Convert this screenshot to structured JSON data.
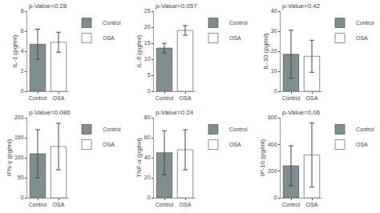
{
  "chart_data": [
    {
      "type": "bar",
      "ylabel": "IL-1 (pg/ml)",
      "annotations": [
        "p-Value=0.28"
      ],
      "categories": [
        "Control",
        "OSA"
      ],
      "series": [
        {
          "name": "Control",
          "color": "#7f8e8f",
          "values": [
            4.7,
            null
          ],
          "errors": [
            1.5,
            null
          ]
        },
        {
          "name": "OSA",
          "color": "#ffffff",
          "values": [
            null,
            4.9
          ],
          "errors": [
            null,
            1.0
          ]
        }
      ],
      "ylim": [
        0,
        8
      ],
      "yticks": [
        0,
        2,
        4,
        6,
        8
      ],
      "grid": false,
      "legend": "upper right"
    },
    {
      "type": "bar",
      "ylabel": "IL-6 (pg/ml)",
      "annotations": [
        "p-Value=0.057"
      ],
      "categories": [
        "Control",
        "OSA"
      ],
      "series": [
        {
          "name": "Control",
          "color": "#7f8e8f",
          "values": [
            13.5,
            null
          ],
          "errors": [
            1.5,
            null
          ]
        },
        {
          "name": "OSA",
          "color": "#ffffff",
          "values": [
            null,
            19.0
          ],
          "errors": [
            null,
            1.5
          ]
        }
      ],
      "ylim": [
        0,
        25
      ],
      "yticks": [
        0,
        5,
        10,
        15,
        20,
        25
      ],
      "grid": false,
      "legend": "upper right"
    },
    {
      "type": "bar",
      "ylabel": "IL-10 (pg/ml)",
      "annotations": [
        "p-Value=0.42"
      ],
      "categories": [
        "Control",
        "OSA"
      ],
      "series": [
        {
          "name": "Control",
          "color": "#7f8e8f",
          "values": [
            18.5,
            null
          ],
          "errors": [
            12.0,
            null
          ]
        },
        {
          "name": "OSA",
          "color": "#ffffff",
          "values": [
            null,
            17.5
          ],
          "errors": [
            null,
            8.0
          ]
        }
      ],
      "ylim": [
        0,
        40
      ],
      "yticks": [
        0,
        10,
        20,
        30,
        40
      ],
      "grid": false,
      "legend": "upper right"
    },
    {
      "type": "bar",
      "ylabel": "IFN-γ (pg/ml)",
      "annotations": [
        "p-Value=0.086"
      ],
      "categories": [
        "Control",
        "OSA"
      ],
      "series": [
        {
          "name": "Control",
          "color": "#7f8e8f",
          "values": [
            110.0,
            null
          ],
          "errors": [
            60.0,
            null
          ]
        },
        {
          "name": "OSA",
          "color": "#ffffff",
          "values": [
            null,
            128.0
          ],
          "errors": [
            null,
            58.0
          ]
        }
      ],
      "ylim": [
        0,
        200
      ],
      "yticks": [
        0,
        50,
        100,
        150,
        200
      ],
      "grid": false,
      "legend": "upper right"
    },
    {
      "type": "bar",
      "ylabel": "TNF-α (pg/ml)",
      "annotations": [
        "p-Value=0.24"
      ],
      "categories": [
        "Control",
        "OSA"
      ],
      "series": [
        {
          "name": "Control",
          "color": "#7f8e8f",
          "values": [
            45.0,
            null
          ],
          "errors": [
            22.0,
            null
          ]
        },
        {
          "name": "OSA",
          "color": "#ffffff",
          "values": [
            null,
            48.0
          ],
          "errors": [
            null,
            20.0
          ]
        }
      ],
      "ylim": [
        0,
        80
      ],
      "yticks": [
        0,
        20,
        40,
        60,
        80
      ],
      "grid": false,
      "legend": "upper right"
    },
    {
      "type": "bar",
      "ylabel": "IP-10 (pg/ml)",
      "annotations": [
        "p-Value=0.06"
      ],
      "categories": [
        "Control",
        "OSA"
      ],
      "series": [
        {
          "name": "Control",
          "color": "#7f8e8f",
          "values": [
            240.0,
            null
          ],
          "errors": [
            150.0,
            null
          ]
        },
        {
          "name": "OSA",
          "color": "#ffffff",
          "values": [
            null,
            320.0
          ],
          "errors": [
            null,
            240.0
          ]
        }
      ],
      "ylim": [
        0,
        600
      ],
      "yticks": [
        0,
        200,
        400,
        600
      ],
      "grid": false,
      "legend": "upper right"
    }
  ]
}
